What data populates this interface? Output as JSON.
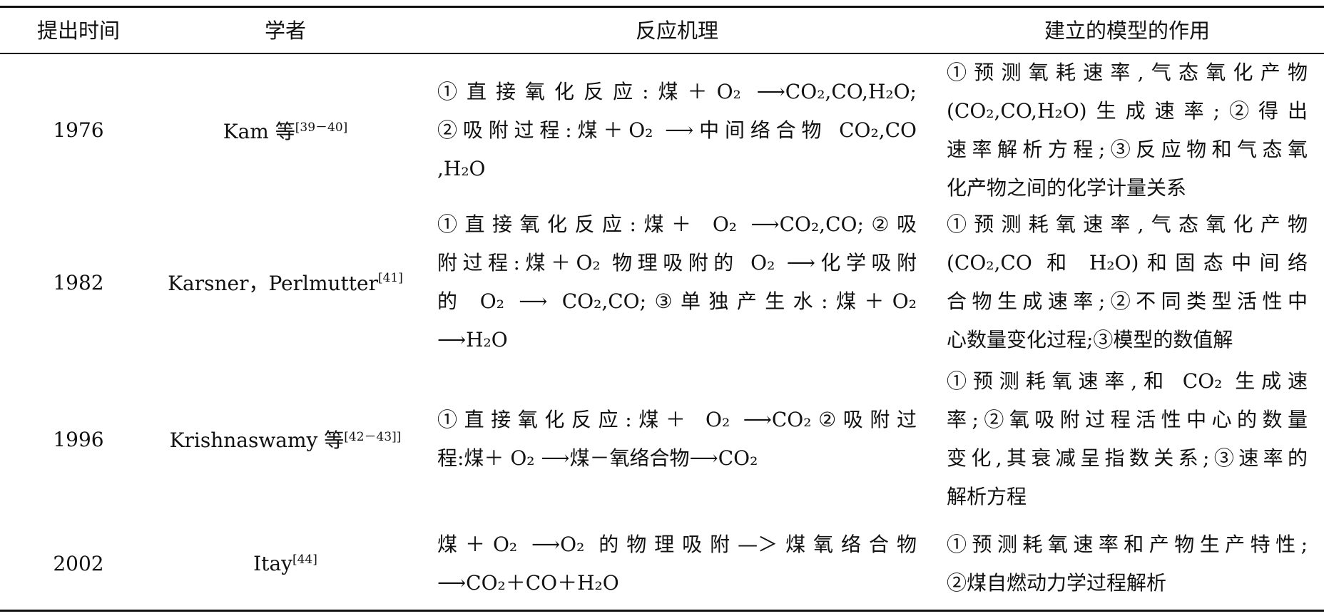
{
  "table": {
    "headers": [
      "提出时间",
      "学者",
      "反应机理",
      "建立的模型的作用"
    ],
    "rows": [
      {
        "year": "1976",
        "scholar": "Kam 等",
        "ref": "[39－40]",
        "mechanism": [
          "①直接氧化反应:煤＋O₂ ⟶CO₂,CO,H₂O;",
          "②吸附过程:煤＋O₂ ⟶中间络合物 CO₂,CO",
          ",H₂O"
        ],
        "role": [
          "①预测氧耗速率,气态氧化产物",
          "(CO₂,CO,H₂O)生成速率;②得出",
          "速率解析方程;③反应物和气态氧",
          "化产物之间的化学计量关系"
        ]
      },
      {
        "year": "1982",
        "scholar": "Karsner，Perlmutter",
        "ref": "[41]",
        "mechanism": [
          "①直接氧化反应:煤＋ O₂ ⟶CO₂,CO;②吸",
          "附过程:煤＋O₂ 物理吸附的 O₂ ⟶化学吸附",
          "的 O₂ ⟶ CO₂,CO;③单独产生水:煤＋O₂",
          "⟶H₂O"
        ],
        "role": [
          "①预测耗氧速率,气态氧化产物",
          "(CO₂,CO 和 H₂O)和固态中间络",
          "合物生成速率;②不同类型活性中",
          "心数量变化过程;③模型的数值解"
        ]
      },
      {
        "year": "1996",
        "scholar": "Krishnaswamy 等",
        "ref": "[42－43]]",
        "mechanism": [
          "①直接氧化反应:煤＋ O₂ ⟶CO₂②吸附过",
          "程:煤＋ O₂ ⟶煤－氧络合物⟶CO₂"
        ],
        "role": [
          "①预测耗氧速率,和 CO₂ 生成速",
          "率;②氧吸附过程活性中心的数量",
          "变化,其衰减呈指数关系;③速率的",
          "解析方程"
        ]
      },
      {
        "year": "2002",
        "scholar": "Itay",
        "ref": "[44]",
        "mechanism": [
          "煤＋O₂ ⟶O₂ 的物理吸附—＞煤氧络合物",
          "⟶CO₂＋CO＋H₂O"
        ],
        "role": [
          "①预测耗氧速率和产物生产特性;",
          "②煤自燃动力学过程解析"
        ]
      }
    ]
  }
}
